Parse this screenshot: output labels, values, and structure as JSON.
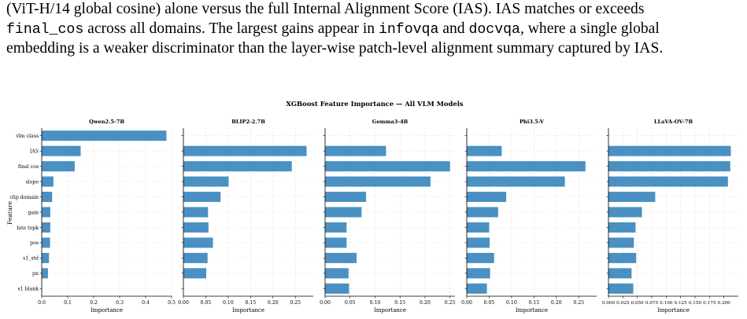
{
  "paragraph": {
    "line1": "(ViT-H/14 global cosine) alone versus the full Internal Alignment Score (IAS). IAS matches or exceeds",
    "line2_code": "final_cos",
    "line2_text": " across all domains.  The largest gains appear in ",
    "line2_code2": "infovqa",
    "line2_and": " and ",
    "line2_code3": "docvqa",
    "line2_rest": ", where a single global",
    "line3": "embedding is a weaker discriminator than the layer-wise patch-level alignment summary captured by IAS."
  },
  "figure": {
    "suptitle": "XGBoost Feature Importance — All VLM Models",
    "ylabel": "Feature",
    "bar_color": "#4a90c2"
  },
  "chart_data": [
    {
      "type": "bar",
      "orientation": "horizontal",
      "title": "Qwen2.5-7B",
      "xlabel": "Importance",
      "categories": [
        "vlm class",
        "IAS",
        "final cos",
        "slope",
        "clip domain",
        "gain",
        "late topk",
        "pos",
        "s1_std",
        "pn",
        "s1 blank"
      ],
      "values": [
        0.48,
        0.15,
        0.127,
        0.045,
        0.04,
        0.033,
        0.033,
        0.032,
        0.028,
        0.024,
        0.0
      ],
      "xlim": [
        0,
        0.5
      ],
      "xticks": [
        "0.0",
        "0.1",
        "0.2",
        "0.3",
        "0.4",
        "0.5"
      ],
      "xtick_values": [
        0,
        0.1,
        0.2,
        0.3,
        0.4,
        0.5
      ],
      "grid": true
    },
    {
      "type": "bar",
      "orientation": "horizontal",
      "title": "BLIP2-2.7B",
      "xlabel": "Importance",
      "categories": [
        "vlm class",
        "IAS",
        "final cos",
        "slope",
        "clip domain",
        "gain",
        "late topk",
        "pos",
        "s1_std",
        "pn",
        "s1 blank"
      ],
      "values": [
        0.0,
        0.275,
        0.242,
        0.101,
        0.083,
        0.055,
        0.056,
        0.066,
        0.054,
        0.051,
        0.0
      ],
      "xlim": [
        0,
        0.29
      ],
      "xticks": [
        "0.00",
        "0.05",
        "0.10",
        "0.15",
        "0.20",
        "0.25"
      ],
      "xtick_values": [
        0,
        0.05,
        0.1,
        0.15,
        0.2,
        0.25
      ],
      "grid": true
    },
    {
      "type": "bar",
      "orientation": "horizontal",
      "title": "Gemma3-4B",
      "xlabel": "Importance",
      "categories": [
        "vlm class",
        "IAS",
        "final cos",
        "slope",
        "clip domain",
        "gain",
        "late topk",
        "pos",
        "s1_std",
        "pn",
        "s1 blank"
      ],
      "values": [
        0.0,
        0.122,
        0.25,
        0.211,
        0.082,
        0.073,
        0.043,
        0.043,
        0.063,
        0.047,
        0.048
      ],
      "xlim": [
        0,
        0.26
      ],
      "xticks": [
        "0.00",
        "0.05",
        "0.10",
        "0.15",
        "0.20",
        "0.25"
      ],
      "xtick_values": [
        0,
        0.05,
        0.1,
        0.15,
        0.2,
        0.25
      ],
      "grid": true
    },
    {
      "type": "bar",
      "orientation": "horizontal",
      "title": "Phi3.5-V",
      "xlabel": "Importance",
      "categories": [
        "vlm class",
        "IAS",
        "final cos",
        "slope",
        "clip domain",
        "gain",
        "late topk",
        "pos",
        "s1_std",
        "pn",
        "s1 blank"
      ],
      "values": [
        0.0,
        0.078,
        0.265,
        0.219,
        0.088,
        0.07,
        0.05,
        0.051,
        0.061,
        0.052,
        0.045
      ],
      "xlim": [
        0,
        0.29
      ],
      "xticks": [
        "0.00",
        "0.05",
        "0.10",
        "0.15",
        "0.20",
        "0.25"
      ],
      "xtick_values": [
        0,
        0.05,
        0.1,
        0.15,
        0.2,
        0.25
      ],
      "grid": true
    },
    {
      "type": "bar",
      "orientation": "horizontal",
      "title": "LLaVA-OV-7B",
      "xlabel": "Importance",
      "categories": [
        "vlm class",
        "IAS",
        "final cos",
        "slope",
        "clip domain",
        "gain",
        "late topk",
        "pos",
        "s1_std",
        "pn",
        "s1 blank"
      ],
      "values": [
        0.0,
        0.212,
        0.211,
        0.207,
        0.081,
        0.058,
        0.047,
        0.044,
        0.048,
        0.04,
        0.043
      ],
      "xlim": [
        0,
        0.225
      ],
      "xticks": [
        "0.000",
        "0.025",
        "0.050",
        "0.075",
        "0.100",
        "0.125",
        "0.150",
        "0.175",
        "0.200"
      ],
      "xtick_values": [
        0,
        0.025,
        0.05,
        0.075,
        0.1,
        0.125,
        0.15,
        0.175,
        0.2
      ],
      "grid": true
    }
  ]
}
